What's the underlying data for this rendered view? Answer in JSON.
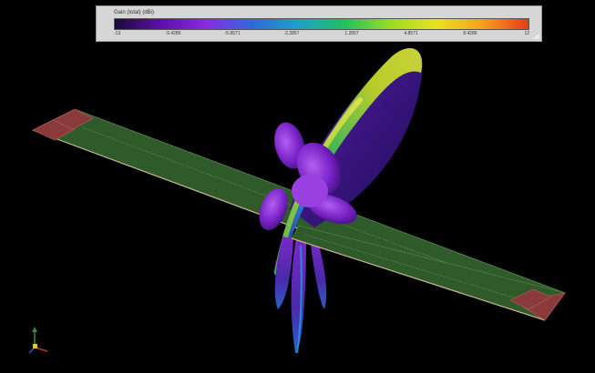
{
  "legend": {
    "title": "Gain (total) (dBi)",
    "ticks": [
      "-13",
      "-9.4286",
      "-5.8571",
      "-2.2857",
      "1.2857",
      "4.8571",
      "8.4286",
      "12"
    ],
    "colors": [
      "#1a0a3c",
      "#5c10a8",
      "#8a2be2",
      "#2f6bd8",
      "#1fa0c8",
      "#22c060",
      "#9bdc22",
      "#e8e320",
      "#f5a020",
      "#e83a1a"
    ]
  },
  "scene": {
    "pattern_colors": {
      "high": "#b8cc2a",
      "mid": "#3cb05a",
      "low": "#6a1fb0",
      "deep": "#2a1260"
    },
    "board_color": "#2f5a2a",
    "pad_color": "#8a3a3a"
  }
}
